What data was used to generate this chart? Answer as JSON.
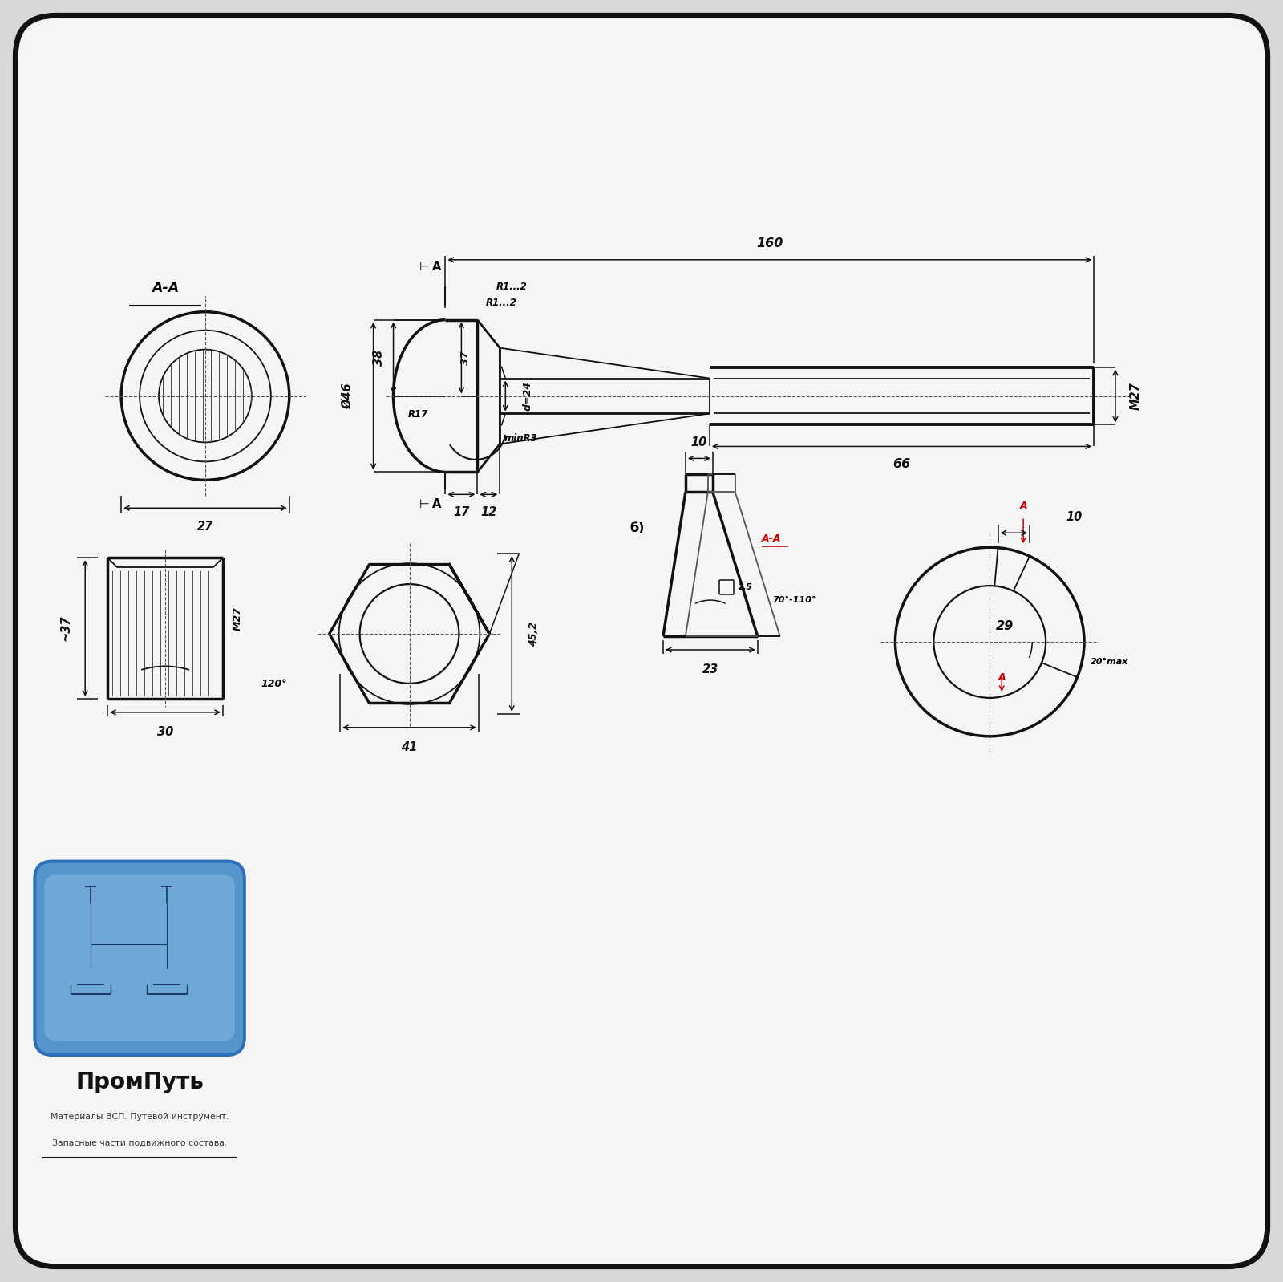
{
  "bg_color": "#d8d8d8",
  "inner_bg": "#f5f5f5",
  "lc": "#111111",
  "rc": "#cc0000",
  "logo_main": "ПромПуть",
  "logo_sub1": "Материалы ВСП. Путевой инструмент.",
  "logo_sub2": "Запасные части подвижного состава."
}
